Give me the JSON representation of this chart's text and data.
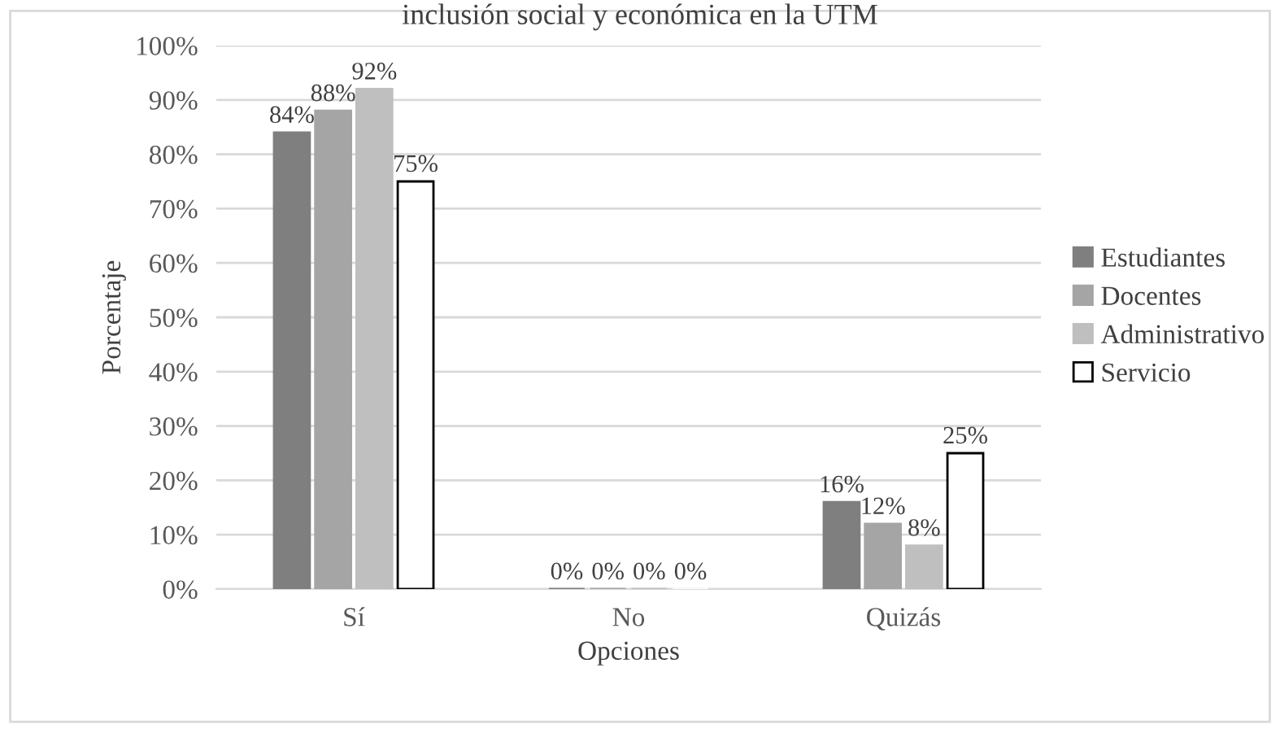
{
  "chart_data": {
    "type": "bar",
    "title": "inclusión social y económica en la UTM",
    "xlabel": "Opciones",
    "ylabel": "Porcentaje",
    "categories": [
      "Sí",
      "No",
      "Quizás"
    ],
    "series": [
      {
        "name": "Estudiantes",
        "color": "#7f7f7f",
        "values": [
          84,
          0,
          16
        ],
        "value_labels": [
          "84%",
          "0%",
          "16%"
        ]
      },
      {
        "name": "Docentes",
        "color": "#a5a5a5",
        "values": [
          88,
          0,
          12
        ],
        "value_labels": [
          "88%",
          "0%",
          "12%"
        ]
      },
      {
        "name": "Administrativo",
        "color": "#bfbfbf",
        "values": [
          92,
          0,
          8
        ],
        "value_labels": [
          "92%",
          "0%",
          "8%"
        ]
      },
      {
        "name": "Servicio",
        "color": "#ffffff",
        "values": [
          75,
          0,
          25
        ],
        "value_labels": [
          "75%",
          "0%",
          "25%"
        ]
      }
    ],
    "ylim": [
      0,
      100
    ],
    "yticks": [
      {
        "value": 0,
        "label": "0%"
      },
      {
        "value": 10,
        "label": "10%"
      },
      {
        "value": 20,
        "label": "20%"
      },
      {
        "value": 30,
        "label": "30%"
      },
      {
        "value": 40,
        "label": "40%"
      },
      {
        "value": 50,
        "label": "50%"
      },
      {
        "value": 60,
        "label": "60%"
      },
      {
        "value": 70,
        "label": "70%"
      },
      {
        "value": 80,
        "label": "80%"
      },
      {
        "value": 90,
        "label": "90%"
      },
      {
        "value": 100,
        "label": "100%"
      }
    ],
    "grid": "y",
    "legend": "right"
  }
}
